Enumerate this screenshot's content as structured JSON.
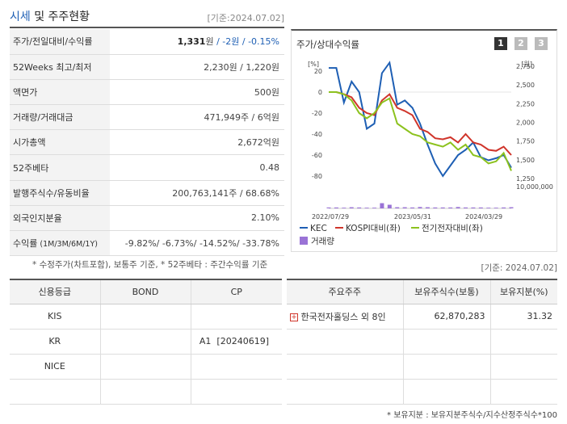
{
  "header": {
    "title_accent": "시세",
    "title_rest": " 및 주주현황",
    "date": "[기준:2024.07.02]"
  },
  "summary": {
    "rows": [
      {
        "label": "주가/전일대비/수익률"
      },
      {
        "label": "52Weeks 최고/최저",
        "value": "2,230원 / 1,220원"
      },
      {
        "label": "액면가",
        "value": "500원"
      },
      {
        "label": "거래량/거래대금",
        "value": "471,949주 / 6억원"
      },
      {
        "label": "시가총액",
        "value": "2,672억원"
      },
      {
        "label": "52주베타",
        "value": "0.48"
      },
      {
        "label": "발행주식수/유동비율",
        "value": "200,763,141주 / 68.68%"
      },
      {
        "label": "외국인지분율",
        "value": "2.10%"
      },
      {
        "label_main": "수익률",
        "label_sub": " (1M/3M/6M/1Y)",
        "value": "-9.82%/ -6.73%/ -14.52%/ -33.78%"
      }
    ],
    "price": "1,331",
    "price_unit": "원",
    "change": " / -2원 / -0.15%",
    "note": "* 수정주가(차트포함), 보통주 기준, * 52주베타 : 주간수익률 기준"
  },
  "chart_panel": {
    "title": "주가/상대수익률",
    "tabs": [
      "1",
      "2",
      "3"
    ]
  },
  "chart_data": {
    "type": "line",
    "left_axis": {
      "label": "[%]",
      "ticks": [
        "20",
        "0",
        "-20",
        "-40",
        "-60",
        "-80"
      ],
      "range": [
        -80,
        20
      ]
    },
    "right_axis": {
      "label": "[원]",
      "ticks": [
        "2,750",
        "2,500",
        "2,250",
        "2,000",
        "1,750",
        "1,500",
        "1,250"
      ],
      "range": [
        1250,
        2750
      ]
    },
    "volume_axis": {
      "tick": "10,000,000",
      "range": [
        0,
        10000000
      ]
    },
    "x_ticks": [
      "2022/07/29",
      "2023/05/31",
      "2024/03/29"
    ],
    "series": [
      {
        "name": "KEC",
        "color": "#1e5fb4",
        "values": [
          23,
          23,
          -10,
          10,
          0,
          -35,
          -30,
          18,
          28,
          -12,
          -8,
          -15,
          -30,
          -50,
          -68,
          -80,
          -70,
          -60,
          -55,
          -48,
          -62,
          -65,
          -63,
          -60,
          -72
        ]
      },
      {
        "name": "KOSPI대비(좌)",
        "color": "#d0352b",
        "values": [
          0,
          0,
          -2,
          -5,
          -15,
          -20,
          -22,
          -8,
          -2,
          -15,
          -18,
          -22,
          -35,
          -38,
          -44,
          -45,
          -43,
          -48,
          -40,
          -48,
          -50,
          -55,
          -56,
          -52,
          -60
        ]
      },
      {
        "name": "전기전자대비(좌)",
        "color": "#8cc21e",
        "values": [
          0,
          0,
          -2,
          -8,
          -20,
          -25,
          -20,
          -10,
          -6,
          -30,
          -35,
          -40,
          -42,
          -48,
          -50,
          -52,
          -48,
          -55,
          -50,
          -60,
          -62,
          -68,
          -66,
          -58,
          -75
        ]
      }
    ],
    "volume": {
      "name": "거래량",
      "color": "#9a73d6",
      "values": [
        0.4,
        0.4,
        0.3,
        0.5,
        0.4,
        0.3,
        0.3,
        2.3,
        1.6,
        0.5,
        0.5,
        0.4,
        0.6,
        0.5,
        0.4,
        0.4,
        0.4,
        0.6,
        0.4,
        0.4,
        0.4,
        0.3,
        0.3,
        0.4,
        0.5
      ]
    }
  },
  "ratings": {
    "headers": [
      "신용등급",
      "BOND",
      "CP"
    ],
    "rows": [
      [
        "KIS",
        "",
        ""
      ],
      [
        "KR",
        "",
        "A1  [20240619]"
      ],
      [
        "NICE",
        "",
        ""
      ],
      [
        "",
        "",
        ""
      ]
    ]
  },
  "holders": {
    "date": "[기준: 2024.07.02]",
    "headers": [
      "주요주주",
      "보유주식수(보통)",
      "보유지분(%)"
    ],
    "rows": [
      [
        "한국전자홀딩스 외 8인",
        "62,870,283",
        "31.32"
      ],
      [
        "",
        "",
        ""
      ],
      [
        "",
        "",
        ""
      ],
      [
        "",
        "",
        ""
      ]
    ],
    "note": "* 보유지분 : 보유지분주식수/지수산정주식수*100"
  },
  "colors": {
    "accent": "#1e5fb4",
    "tab_active": "#333333",
    "tab_inactive": "#bbbbbb"
  }
}
